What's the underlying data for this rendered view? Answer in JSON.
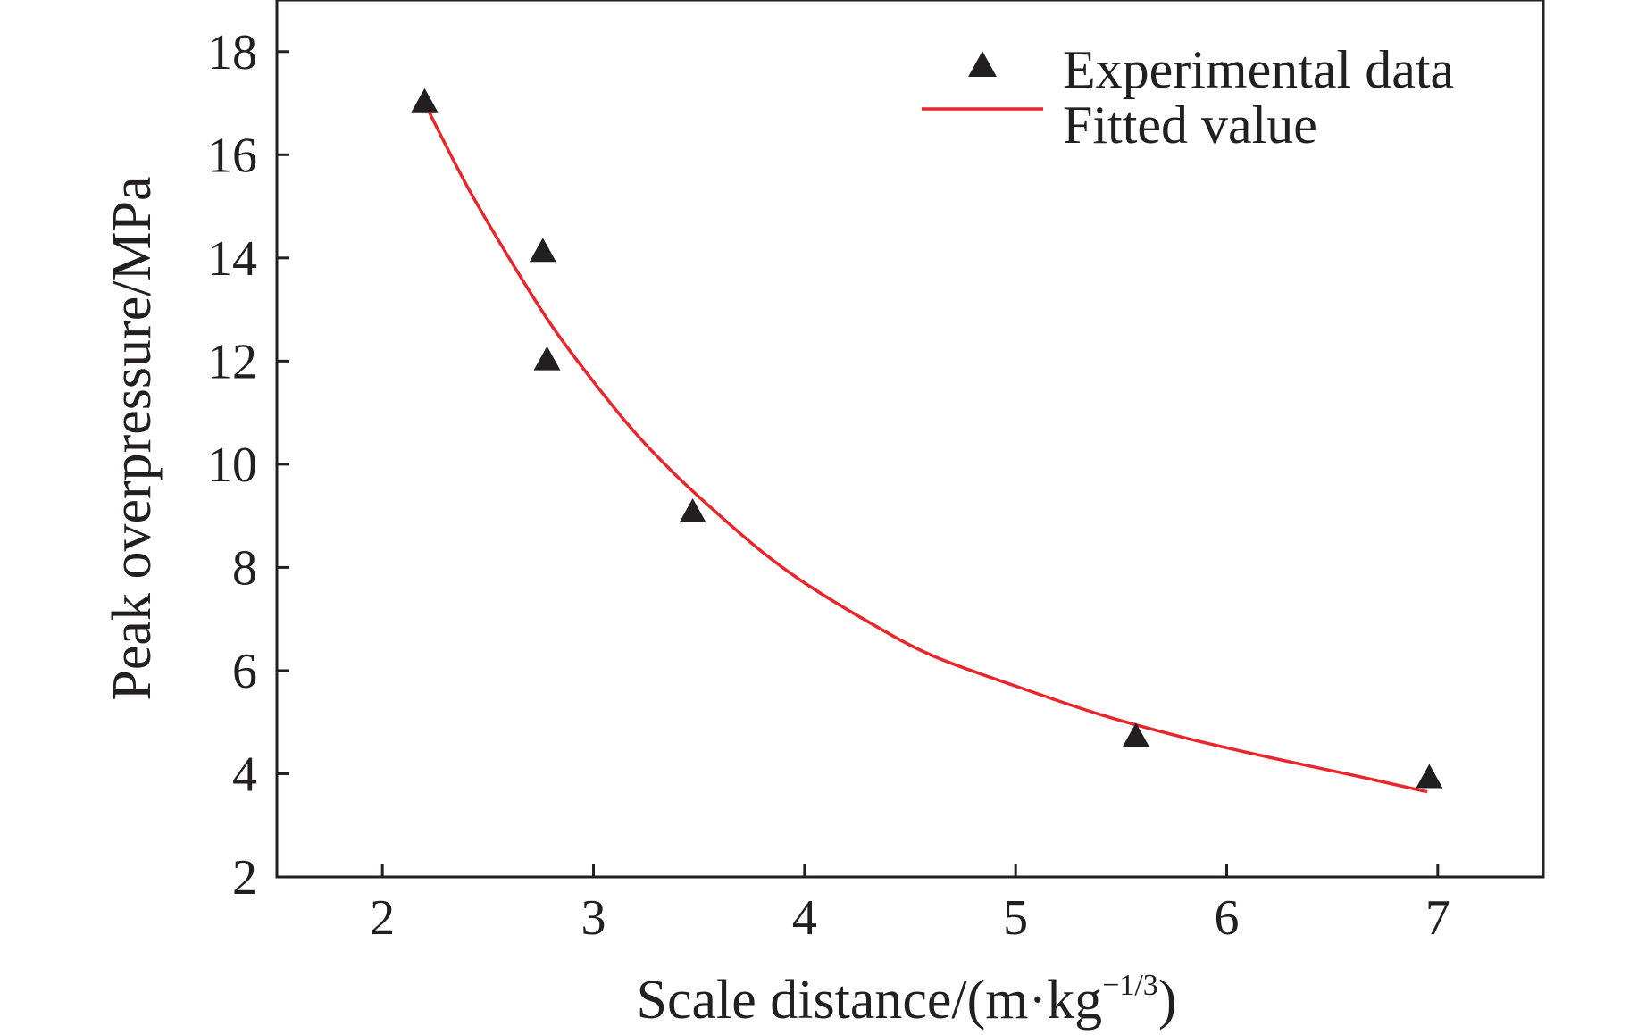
{
  "chart_data": {
    "type": "scatter",
    "xlabel": "Scale distance/(m·kg",
    "xlabel_unit_exponent": "−1/3",
    "xlabel_close": ")",
    "ylabel": "Peak overpressure/MPa",
    "xlim": [
      1.5,
      7.5
    ],
    "ylim": [
      2,
      19
    ],
    "xticks": [
      2,
      3,
      4,
      5,
      6,
      7
    ],
    "yticks": [
      2,
      4,
      6,
      8,
      10,
      12,
      14,
      16,
      18
    ],
    "grid": false,
    "legend_position": "top-right",
    "series": [
      {
        "name": "Experimental data",
        "kind": "scatter",
        "marker": "triangle",
        "color": "#231f20",
        "x": [
          2.2,
          2.76,
          2.78,
          3.47,
          5.57,
          6.96
        ],
        "y": [
          17.0,
          14.1,
          12.0,
          9.05,
          4.7,
          3.9
        ]
      },
      {
        "name": "Fitted value",
        "kind": "line",
        "color": "#e8262b",
        "x": [
          2.2,
          2.4,
          2.6,
          2.8,
          3.0,
          3.2,
          3.4,
          3.6,
          3.8,
          4.0,
          4.3,
          4.6,
          5.0,
          5.4,
          5.8,
          6.2,
          6.6,
          6.95
        ],
        "y": [
          17.0,
          15.4,
          14.0,
          12.7,
          11.6,
          10.6,
          9.75,
          9.0,
          8.3,
          7.7,
          6.95,
          6.3,
          5.7,
          5.15,
          4.7,
          4.32,
          3.97,
          3.65
        ]
      }
    ]
  }
}
